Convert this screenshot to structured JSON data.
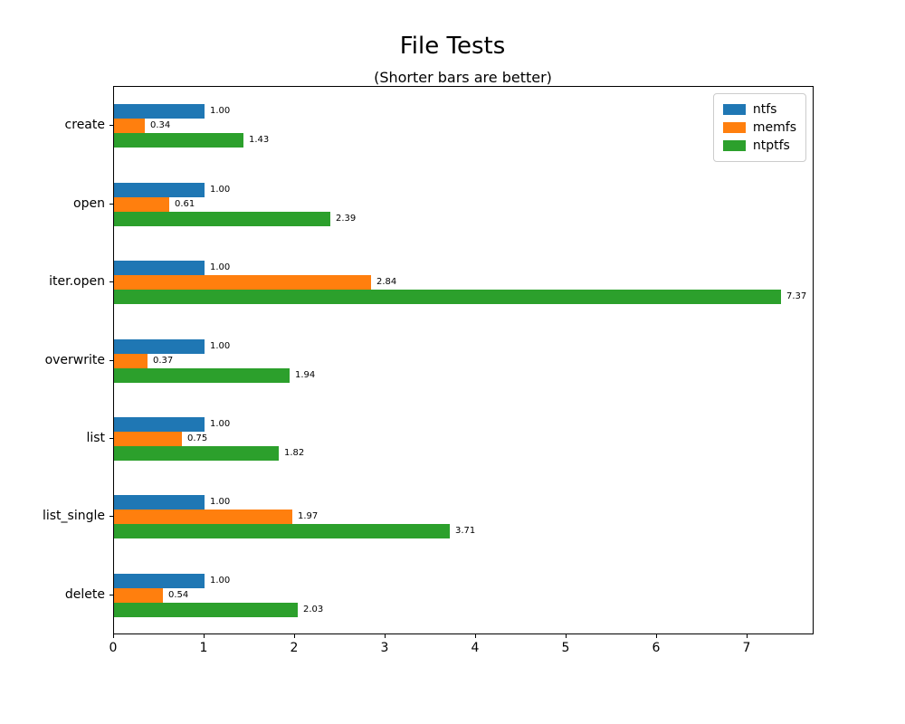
{
  "figure": {
    "title": "File Tests",
    "subtitle": "(Shorter bars are better)"
  },
  "chart_data": {
    "type": "bar",
    "orientation": "horizontal",
    "title": "File Tests",
    "subtitle": "(Shorter bars are better)",
    "categories": [
      "create",
      "open",
      "iter.open",
      "overwrite",
      "list",
      "list_single",
      "delete"
    ],
    "series": [
      {
        "name": "ntfs",
        "color": "#1f77b4",
        "values": [
          1.0,
          1.0,
          1.0,
          1.0,
          1.0,
          1.0,
          1.0
        ]
      },
      {
        "name": "memfs",
        "color": "#ff7f0e",
        "values": [
          0.34,
          0.61,
          2.84,
          0.37,
          0.75,
          1.97,
          0.54
        ]
      },
      {
        "name": "ntptfs",
        "color": "#2ca02c",
        "values": [
          1.43,
          2.39,
          7.37,
          1.94,
          1.82,
          3.71,
          2.03
        ]
      }
    ],
    "value_label_format": "2-decimals",
    "xticks": [
      0,
      1,
      2,
      3,
      4,
      5,
      6,
      7
    ],
    "xlim": [
      0,
      7.73
    ],
    "grid": false,
    "legend_position": "upper right",
    "bar_value_labels_shown": true
  }
}
